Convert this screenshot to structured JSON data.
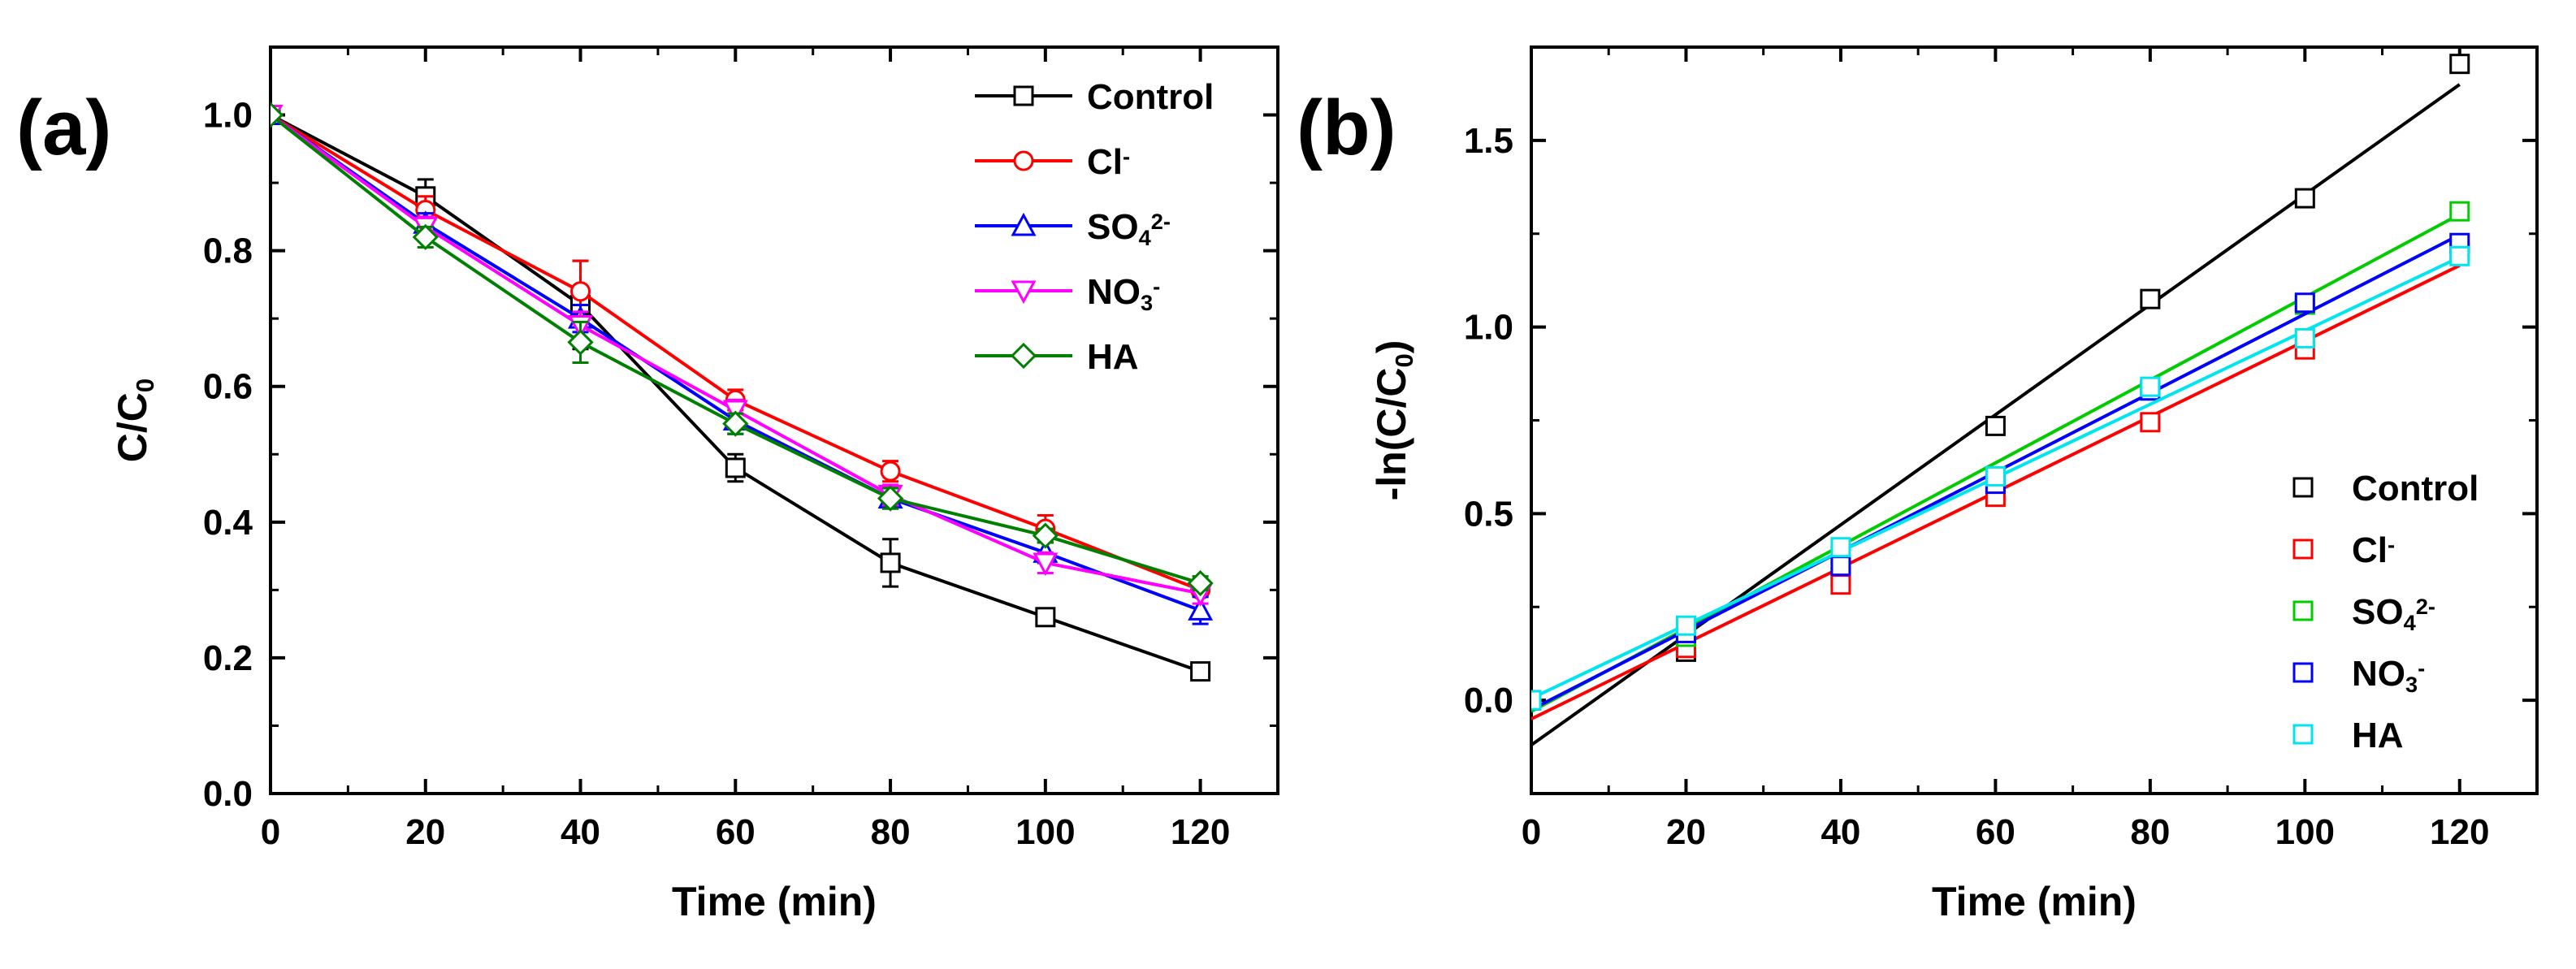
{
  "figure_title": "",
  "chart_data": [
    {
      "type": "line",
      "panel_label": "(a)",
      "xlabel": "Time (min)",
      "ylabel": "C/C0",
      "ylabel_main": "C/C",
      "ylabel_sub": "0",
      "xlim": [
        0,
        130
      ],
      "ylim": [
        0,
        1.1
      ],
      "xticks": [
        0,
        20,
        40,
        60,
        80,
        100,
        120
      ],
      "yticks": [
        0.0,
        0.2,
        0.4,
        0.6,
        0.8,
        1.0
      ],
      "xtick_labels": [
        "0",
        "20",
        "40",
        "60",
        "80",
        "100",
        "120"
      ],
      "ytick_labels": [
        "0.0",
        "0.2",
        "0.4",
        "0.6",
        "0.8",
        "1.0"
      ],
      "legend_position": "top-right",
      "x": [
        0,
        20,
        40,
        60,
        80,
        100,
        120
      ],
      "series": [
        {
          "name": "Control",
          "label_main": "Control",
          "label_sub": "",
          "label_sup": "",
          "color": "#000000",
          "marker": "square",
          "values": [
            1.0,
            0.88,
            0.72,
            0.48,
            0.34,
            0.26,
            0.18
          ],
          "errors": [
            0,
            0.025,
            0.065,
            0.02,
            0.035,
            0.01,
            0.005
          ]
        },
        {
          "name": "Cl-",
          "label_main": "Cl",
          "label_sub": "",
          "label_sup": "-",
          "color": "#ff0000",
          "marker": "circle",
          "values": [
            1.0,
            0.86,
            0.74,
            0.58,
            0.475,
            0.39,
            0.3
          ],
          "errors": [
            0,
            0.02,
            0.045,
            0.015,
            0.015,
            0.02,
            0.01
          ]
        },
        {
          "name": "SO42-",
          "label_main": "SO",
          "label_sub": "4",
          "label_sup": "2-",
          "color": "#0000ff",
          "marker": "triangle-up",
          "values": [
            1.0,
            0.84,
            0.7,
            0.55,
            0.435,
            0.355,
            0.27
          ],
          "errors": [
            0,
            0.015,
            0.02,
            0.02,
            0.015,
            0.015,
            0.02
          ]
        },
        {
          "name": "NO3-",
          "label_main": "NO",
          "label_sub": "3",
          "label_sup": "-",
          "color": "#ff00ff",
          "marker": "triangle-down",
          "values": [
            1.0,
            0.835,
            0.69,
            0.565,
            0.44,
            0.34,
            0.295
          ],
          "errors": [
            0,
            0.015,
            0.02,
            0.015,
            0.015,
            0.015,
            0.015
          ]
        },
        {
          "name": "HA",
          "label_main": "HA",
          "label_sub": "",
          "label_sup": "",
          "color": "#008000",
          "marker": "diamond",
          "values": [
            1.0,
            0.82,
            0.665,
            0.545,
            0.435,
            0.38,
            0.31
          ],
          "errors": [
            0,
            0.015,
            0.03,
            0.015,
            0.015,
            0.01,
            0.01
          ]
        }
      ]
    },
    {
      "type": "scatter",
      "panel_label": "(b)",
      "xlabel": "Time (min)",
      "ylabel": "-ln(C/C0)",
      "ylabel_main": "-ln(C/C",
      "ylabel_sub": "0",
      "ylabel_end": ")",
      "xlim": [
        0,
        130
      ],
      "ylim": [
        -0.25,
        1.75
      ],
      "xticks": [
        0,
        20,
        40,
        60,
        80,
        100,
        120
      ],
      "yticks": [
        0.0,
        0.5,
        1.0,
        1.5
      ],
      "xtick_labels": [
        "0",
        "20",
        "40",
        "60",
        "80",
        "100",
        "120"
      ],
      "ytick_labels": [
        "0.0",
        "0.5",
        "1.0",
        "1.5"
      ],
      "legend_position": "bottom-right",
      "x": [
        0,
        20,
        40,
        60,
        80,
        100,
        120
      ],
      "series": [
        {
          "name": "Control",
          "label_main": "Control",
          "label_sub": "",
          "label_sup": "",
          "color": "#000000",
          "marker": "square",
          "values": [
            0.0,
            0.13,
            0.33,
            0.735,
            1.075,
            1.345,
            1.705
          ],
          "fit": {
            "slope": 0.01475,
            "intercept": -0.12
          }
        },
        {
          "name": "Cl-",
          "label_main": "Cl",
          "label_sub": "",
          "label_sup": "-",
          "color": "#ff0000",
          "marker": "square",
          "values": [
            0.0,
            0.14,
            0.31,
            0.545,
            0.745,
            0.94,
            1.2
          ],
          "fit": {
            "slope": 0.010125,
            "intercept": -0.05
          }
        },
        {
          "name": "SO42-",
          "label_main": "SO",
          "label_sub": "4",
          "label_sup": "2-",
          "color": "#00cc00",
          "marker": "square",
          "values": [
            0.0,
            0.17,
            0.39,
            0.6,
            0.83,
            1.06,
            1.31
          ],
          "fit": {
            "slope": 0.0111,
            "intercept": -0.03
          }
        },
        {
          "name": "NO3-",
          "label_main": "NO",
          "label_sub": "3",
          "label_sup": "-",
          "color": "#0000ff",
          "marker": "square",
          "values": [
            0.0,
            0.18,
            0.36,
            0.58,
            0.83,
            1.065,
            1.225
          ],
          "fit": {
            "slope": 0.0106,
            "intercept": -0.025
          }
        },
        {
          "name": "HA",
          "label_main": "HA",
          "label_sub": "",
          "label_sup": "",
          "color": "#00e5ee",
          "marker": "square",
          "values": [
            0.0,
            0.2,
            0.41,
            0.6,
            0.84,
            0.97,
            1.19
          ],
          "fit": {
            "slope": 0.00985,
            "intercept": 0.005
          }
        }
      ]
    }
  ]
}
